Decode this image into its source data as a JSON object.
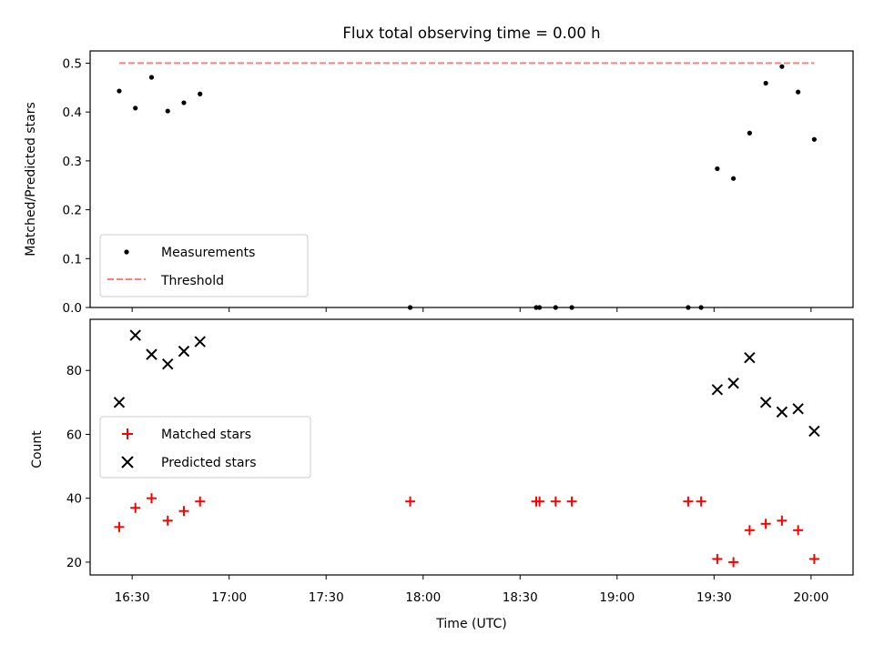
{
  "chart_data": [
    {
      "type": "scatter",
      "title": "Flux total observing time = 0.00 h",
      "xlabel": "",
      "ylabel": "Matched/Predicted stars",
      "ylim": [
        0,
        0.525
      ],
      "yticks": [
        0.0,
        0.1,
        0.2,
        0.3,
        0.4,
        0.5
      ],
      "ytick_labels": [
        "0.0",
        "0.1",
        "0.2",
        "0.3",
        "0.4",
        "0.5"
      ],
      "legend_position": "lower-left",
      "series": [
        {
          "name": "Measurements",
          "marker": "dot",
          "color": "#000000",
          "x": [
            "16:26",
            "16:31",
            "16:36",
            "16:41",
            "16:46",
            "16:51",
            "17:56",
            "18:35",
            "18:36",
            "18:41",
            "18:46",
            "19:22",
            "19:26",
            "19:31",
            "19:36",
            "19:41",
            "19:46",
            "19:51",
            "19:56",
            "20:01"
          ],
          "y": [
            0.443,
            0.408,
            0.471,
            0.402,
            0.419,
            0.437,
            0.0,
            0.0,
            0.0,
            0.0,
            0.0,
            0.0,
            0.0,
            0.284,
            0.264,
            0.357,
            0.459,
            0.493,
            0.441,
            0.344
          ]
        },
        {
          "name": "Threshold",
          "marker": "dashed-line",
          "color": "#ff7f7f",
          "x": [
            "16:26",
            "20:01"
          ],
          "y": [
            0.5,
            0.5
          ]
        }
      ]
    },
    {
      "type": "scatter",
      "title": "",
      "xlabel": "Time (UTC)",
      "ylabel": "Count",
      "ylim": [
        16,
        96
      ],
      "yticks": [
        20,
        40,
        60,
        80
      ],
      "ytick_labels": [
        "20",
        "40",
        "60",
        "80"
      ],
      "xticks": [
        "16:30",
        "17:00",
        "17:30",
        "18:00",
        "18:30",
        "19:00",
        "19:30",
        "20:00"
      ],
      "xlim": [
        "16:17",
        "20:13"
      ],
      "legend_position": "center-left",
      "series": [
        {
          "name": "Matched stars",
          "marker": "plus",
          "color": "#ff0000",
          "x": [
            "16:26",
            "16:31",
            "16:36",
            "16:41",
            "16:46",
            "16:51",
            "17:56",
            "18:35",
            "18:36",
            "18:41",
            "18:46",
            "19:22",
            "19:26",
            "19:31",
            "19:36",
            "19:41",
            "19:46",
            "19:51",
            "19:56",
            "20:01"
          ],
          "y": [
            31,
            37,
            40,
            33,
            36,
            39,
            39,
            39,
            39,
            39,
            39,
            39,
            39,
            21,
            20,
            30,
            32,
            33,
            30,
            21
          ]
        },
        {
          "name": "Predicted stars",
          "marker": "x",
          "color": "#000000",
          "x": [
            "16:26",
            "16:31",
            "16:36",
            "16:41",
            "16:46",
            "16:51",
            "19:31",
            "19:36",
            "19:41",
            "19:46",
            "19:51",
            "19:56",
            "20:01"
          ],
          "y": [
            70,
            91,
            85,
            82,
            86,
            89,
            74,
            76,
            84,
            70,
            67,
            68,
            61
          ]
        }
      ]
    }
  ]
}
